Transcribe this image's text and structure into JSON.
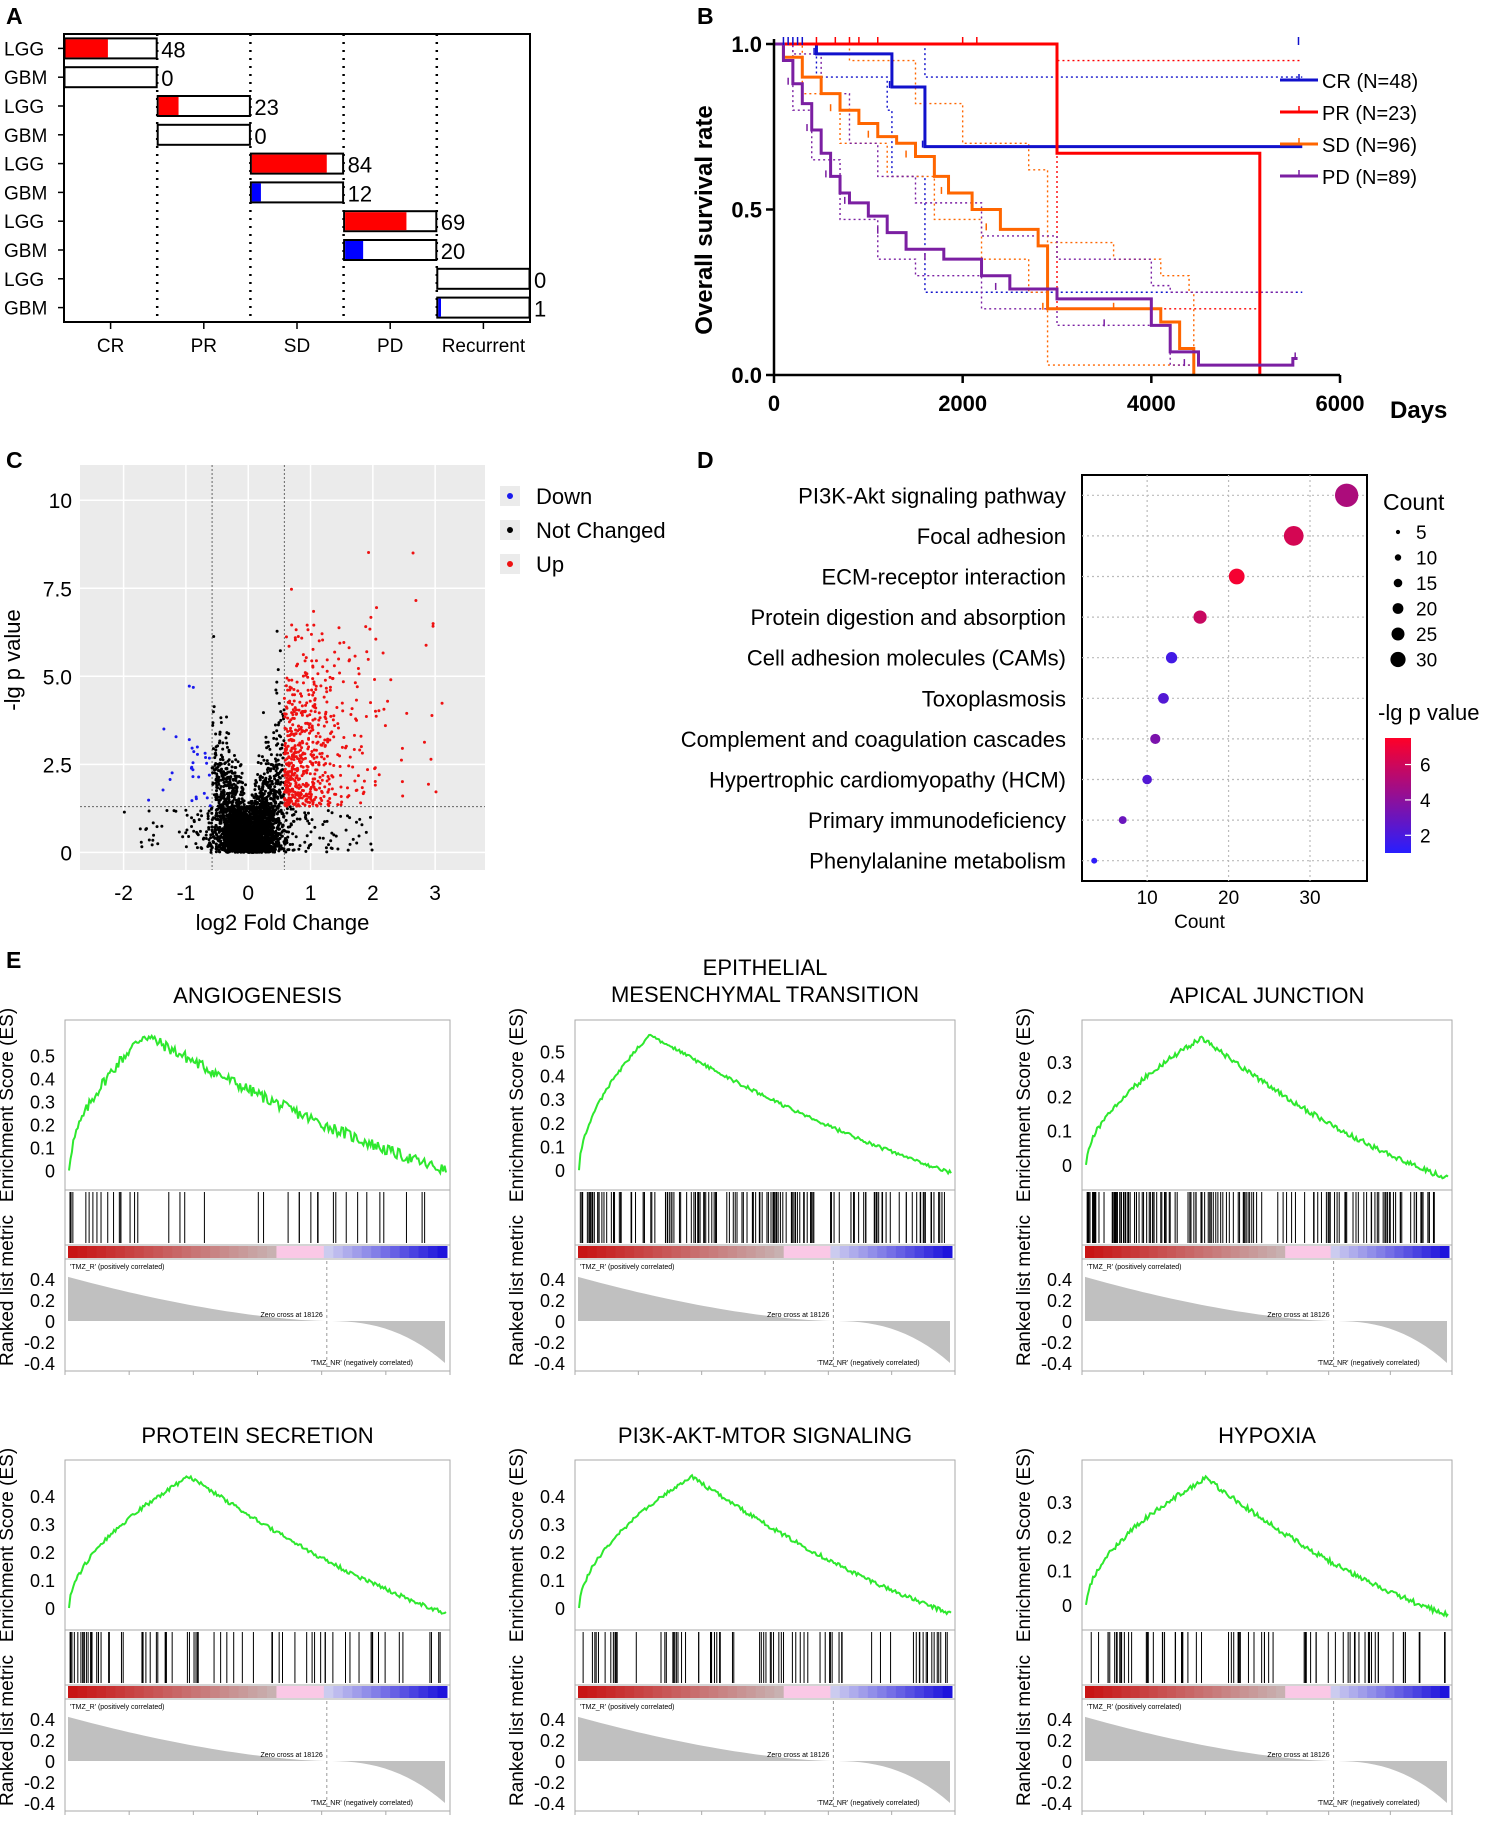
{
  "panel_labels": [
    "A",
    "B",
    "C",
    "D",
    "E"
  ],
  "chart_data": [
    {
      "panel": "A",
      "type": "bar",
      "subtype": "horizontal-stacked-proportion",
      "groups": [
        "CR",
        "PR",
        "SD",
        "PD",
        "Recurrent"
      ],
      "rows": [
        {
          "group": "CR",
          "label": "LGG",
          "n": 48,
          "n_label": "48",
          "fill_fraction": 0.47,
          "fill_color": "#ff0000"
        },
        {
          "group": "CR",
          "label": "GBM",
          "n": 0,
          "n_label": "0",
          "fill_fraction": 0,
          "fill_color": "#0000ff"
        },
        {
          "group": "PR",
          "label": "LGG",
          "n": 23,
          "n_label": "23",
          "fill_fraction": 0.22,
          "fill_color": "#ff0000"
        },
        {
          "group": "PR",
          "label": "GBM",
          "n": 0,
          "n_label": "0",
          "fill_fraction": 0,
          "fill_color": "#0000ff"
        },
        {
          "group": "SD",
          "label": "LGG",
          "n": 84,
          "n_label": "84",
          "fill_fraction": 0.83,
          "fill_color": "#ff0000"
        },
        {
          "group": "SD",
          "label": "GBM",
          "n": 12,
          "n_label": "12",
          "fill_fraction": 0.1,
          "fill_color": "#0000ff"
        },
        {
          "group": "PD",
          "label": "LGG",
          "n": 69,
          "n_label": "69",
          "fill_fraction": 0.68,
          "fill_color": "#ff0000"
        },
        {
          "group": "PD",
          "label": "GBM",
          "n": 20,
          "n_label": "20",
          "fill_fraction": 0.2,
          "fill_color": "#0000ff"
        },
        {
          "group": "Recurrent",
          "label": "LGG",
          "n": 0,
          "n_label": "0",
          "fill_fraction": 0,
          "fill_color": "#ff0000"
        },
        {
          "group": "Recurrent",
          "label": "GBM",
          "n": 1,
          "n_label": "1",
          "fill_fraction": 0.03,
          "fill_color": "#0000ff"
        }
      ]
    },
    {
      "panel": "B",
      "type": "line",
      "subtype": "kaplan-meier",
      "ylabel": "Overall survival rate",
      "xlabel": "Days",
      "xlim": [
        0,
        6000
      ],
      "ylim": [
        0,
        1
      ],
      "xticks": [
        0,
        2000,
        4000,
        6000
      ],
      "xtick_labels": [
        "0",
        "2000",
        "4000",
        "6000"
      ],
      "yticks": [
        0,
        0.5,
        1
      ],
      "ytick_labels": [
        "0.0",
        "0.5",
        "1.0"
      ],
      "series": [
        {
          "name": "CR (N=48)",
          "color": "#1111cc",
          "steps": [
            [
              0,
              1
            ],
            [
              400,
              1
            ],
            [
              450,
              0.97
            ],
            [
              1200,
              0.97
            ],
            [
              1250,
              0.87
            ],
            [
              1550,
              0.87
            ],
            [
              1600,
              0.69
            ],
            [
              5600,
              0.69
            ]
          ],
          "ci_upper": [
            [
              0,
              1
            ],
            [
              1500,
              1
            ],
            [
              1600,
              0.9
            ],
            [
              5600,
              0.9
            ]
          ],
          "ci_lower": [
            [
              0,
              1
            ],
            [
              400,
              1
            ],
            [
              450,
              0.9
            ],
            [
              1200,
              0.8
            ],
            [
              1250,
              0.6
            ],
            [
              1550,
              0.6
            ],
            [
              1600,
              0.25
            ],
            [
              5600,
              0.25
            ]
          ]
        },
        {
          "name": "PR (N=23)",
          "color": "#ff0000",
          "steps": [
            [
              0,
              1
            ],
            [
              3000,
              1
            ],
            [
              3000,
              0.67
            ],
            [
              5150,
              0.67
            ],
            [
              5150,
              0
            ],
            [
              5150,
              0
            ]
          ],
          "ci_upper": [
            [
              0,
              1
            ],
            [
              3000,
              1
            ],
            [
              3000,
              0.95
            ],
            [
              5600,
              0.95
            ]
          ],
          "ci_lower": [
            [
              0,
              1
            ],
            [
              3000,
              1
            ],
            [
              3000,
              0.2
            ],
            [
              5150,
              0.2
            ]
          ]
        },
        {
          "name": "SD (N=96)",
          "color": "#ff6600",
          "steps": [
            [
              0,
              1
            ],
            [
              100,
              0.96
            ],
            [
              300,
              0.9
            ],
            [
              500,
              0.85
            ],
            [
              700,
              0.8
            ],
            [
              900,
              0.76
            ],
            [
              1100,
              0.72
            ],
            [
              1300,
              0.7
            ],
            [
              1500,
              0.66
            ],
            [
              1700,
              0.6
            ],
            [
              1850,
              0.55
            ],
            [
              2100,
              0.5
            ],
            [
              2400,
              0.44
            ],
            [
              2800,
              0.39
            ],
            [
              2900,
              0.2
            ],
            [
              3300,
              0.2
            ],
            [
              3900,
              0.2
            ],
            [
              4100,
              0.16
            ],
            [
              4300,
              0.08
            ],
            [
              4450,
              0
            ],
            [
              4450,
              0
            ]
          ],
          "ci_upper": [
            [
              0,
              1
            ],
            [
              400,
              1
            ],
            [
              800,
              0.95
            ],
            [
              1500,
              0.82
            ],
            [
              2000,
              0.7
            ],
            [
              2700,
              0.62
            ],
            [
              2900,
              0.4
            ],
            [
              3600,
              0.35
            ],
            [
              4100,
              0.3
            ],
            [
              4400,
              0.25
            ],
            [
              4450,
              0
            ]
          ],
          "ci_lower": [
            [
              0,
              1
            ],
            [
              300,
              0.85
            ],
            [
              700,
              0.7
            ],
            [
              1200,
              0.6
            ],
            [
              1700,
              0.47
            ],
            [
              2200,
              0.35
            ],
            [
              2700,
              0.25
            ],
            [
              2900,
              0.03
            ],
            [
              4450,
              0.02
            ]
          ]
        },
        {
          "name": "PD (N=89)",
          "color": "#7b1fa2",
          "steps": [
            [
              0,
              1
            ],
            [
              100,
              0.95
            ],
            [
              200,
              0.88
            ],
            [
              300,
              0.82
            ],
            [
              400,
              0.74
            ],
            [
              500,
              0.67
            ],
            [
              600,
              0.6
            ],
            [
              700,
              0.55
            ],
            [
              800,
              0.52
            ],
            [
              1000,
              0.48
            ],
            [
              1200,
              0.43
            ],
            [
              1400,
              0.38
            ],
            [
              1800,
              0.35
            ],
            [
              2200,
              0.3
            ],
            [
              2500,
              0.26
            ],
            [
              3000,
              0.23
            ],
            [
              4000,
              0.15
            ],
            [
              4200,
              0.07
            ],
            [
              4500,
              0.03
            ],
            [
              5500,
              0.05
            ],
            [
              5550,
              0.05
            ]
          ],
          "ci_upper": [
            [
              0,
              1
            ],
            [
              200,
              0.97
            ],
            [
              500,
              0.85
            ],
            [
              800,
              0.7
            ],
            [
              1100,
              0.6
            ],
            [
              1500,
              0.52
            ],
            [
              2200,
              0.42
            ],
            [
              3000,
              0.35
            ],
            [
              4000,
              0.27
            ],
            [
              4200,
              0.25
            ],
            [
              5500,
              0.25
            ]
          ],
          "ci_lower": [
            [
              0,
              1
            ],
            [
              200,
              0.8
            ],
            [
              400,
              0.65
            ],
            [
              700,
              0.47
            ],
            [
              1100,
              0.35
            ],
            [
              1500,
              0.3
            ],
            [
              2200,
              0.2
            ],
            [
              3000,
              0.15
            ],
            [
              4200,
              0.03
            ],
            [
              5500,
              0.03
            ]
          ]
        }
      ]
    },
    {
      "panel": "C",
      "type": "scatter",
      "subtype": "volcano",
      "xlabel": "log2 Fold Change",
      "ylabel": "-lg p value",
      "xlim": [
        -2.7,
        3.8
      ],
      "ylim": [
        -0.5,
        11
      ],
      "xticks": [
        -2,
        -1,
        0,
        1,
        2,
        3
      ],
      "xtick_labels": [
        "-2",
        "-1",
        "0",
        "1",
        "2",
        "3"
      ],
      "yticks": [
        0,
        2.5,
        5,
        7.5,
        10
      ],
      "ytick_labels": [
        "0",
        "2.5",
        "5.0",
        "7.5",
        "10"
      ],
      "thresholds": {
        "x": [
          -0.58,
          0.58
        ],
        "y": 1.3
      },
      "legend": [
        {
          "label": "Down",
          "color": "#1a1aee"
        },
        {
          "label": "Not Changed",
          "color": "#000000"
        },
        {
          "label": "Up",
          "color": "#ee1111"
        }
      ],
      "point_counts_approx": {
        "up": 620,
        "down": 30,
        "not_changed": 3200
      }
    },
    {
      "panel": "D",
      "type": "scatter",
      "subtype": "bubble-enrichment",
      "xlabel": "Count",
      "xticks": [
        10,
        20,
        30
      ],
      "xtick_labels": [
        "10",
        "20",
        "30"
      ],
      "xlim": [
        2,
        37
      ],
      "categories": [
        "PI3K-Akt signaling pathway",
        "Focal adhesion",
        "ECM-receptor interaction",
        "Protein digestion and absorption",
        "Cell adhesion molecules (CAMs)",
        "Toxoplasmosis",
        "Complement and coagulation cascades",
        "Hypertrophic cardiomyopathy (HCM)",
        "Primary immunodeficiency",
        "Phenylalanine metabolism"
      ],
      "counts": [
        34.5,
        28,
        21,
        16.5,
        13,
        12,
        11,
        10,
        7,
        3.5
      ],
      "neg_lg_p": [
        5.0,
        6.2,
        7.2,
        5.8,
        1.8,
        2.3,
        3.5,
        2.3,
        3.0,
        1.2
      ],
      "size_legend_title": "Count",
      "size_legend": [
        "5",
        "10",
        "15",
        "20",
        "25",
        "30"
      ],
      "color_legend_title": "-lg p value",
      "color_legend_ticks": [
        "6",
        "4",
        "2"
      ],
      "color_range": [
        1,
        7.5
      ]
    },
    {
      "panel": "E",
      "type": "line",
      "subtype": "gsea-enrichment-plots",
      "y_axis_es_label": "Enrichment Score (ES)",
      "y_axis_rank_label": "Ranked list metric",
      "pos_label": "'TMZ_R' (positively correlated)",
      "neg_label": "'TMZ_NR' (negatively correlated)",
      "zero_cross": "Zero cross at 18126",
      "rank_ticks": [
        "0.4",
        "0.2",
        "0",
        "-0.2",
        "-0.4"
      ],
      "plots": [
        {
          "title_lines": [
            "ANGIOGENESIS"
          ],
          "es_ticks": [
            "0.5",
            "0.4",
            "0.3",
            "0.2",
            "0.1",
            "0"
          ],
          "es_max": 0.59,
          "peak": 0.2,
          "jag": 1,
          "tail": 0.0,
          "hits_density": "sparse"
        },
        {
          "title_lines": [
            "EPITHELIAL",
            "MESENCHYMAL TRANSITION"
          ],
          "es_ticks": [
            "0.5",
            "0.4",
            "0.3",
            "0.2",
            "0.1",
            "0"
          ],
          "es_max": 0.57,
          "peak": 0.19,
          "jag": 0,
          "tail": -0.01,
          "hits_density": "dense"
        },
        {
          "title_lines": [
            "APICAL JUNCTION"
          ],
          "es_ticks": [
            "0.3",
            "0.2",
            "0.1",
            "0"
          ],
          "es_max": 0.37,
          "peak": 0.32,
          "jag": 0,
          "tail": -0.04,
          "hits_density": "dense"
        },
        {
          "title_lines": [
            "PROTEIN SECRETION"
          ],
          "es_ticks": [
            "0.4",
            "0.3",
            "0.2",
            "0.1",
            "0"
          ],
          "es_max": 0.47,
          "peak": 0.32,
          "jag": 0,
          "tail": -0.02,
          "hits_density": "medium"
        },
        {
          "title_lines": [
            "PI3K-AKT-MTOR SIGNALING"
          ],
          "es_ticks": [
            "0.4",
            "0.3",
            "0.2",
            "0.1",
            "0"
          ],
          "es_max": 0.47,
          "peak": 0.3,
          "jag": 0,
          "tail": -0.02,
          "hits_density": "medium"
        },
        {
          "title_lines": [
            "HYPOXIA"
          ],
          "es_ticks": [
            "0.3",
            "0.2",
            "0.1",
            "0"
          ],
          "es_max": 0.37,
          "peak": 0.33,
          "jag": 0,
          "tail": -0.03,
          "hits_density": "medium"
        }
      ]
    }
  ]
}
